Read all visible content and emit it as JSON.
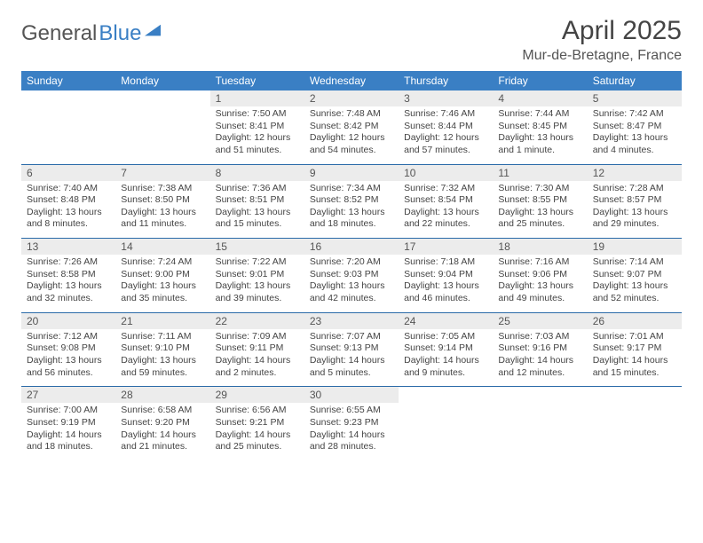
{
  "brand": {
    "part1": "General",
    "part2": "Blue"
  },
  "title": "April 2025",
  "location": "Mur-de-Bretagne, France",
  "day_headers": [
    "Sunday",
    "Monday",
    "Tuesday",
    "Wednesday",
    "Thursday",
    "Friday",
    "Saturday"
  ],
  "colors": {
    "header_bg": "#3a7fc4",
    "header_fg": "#ffffff",
    "daynum_bg": "#ececec",
    "rule": "#2a6aa8"
  },
  "weeks": [
    [
      null,
      null,
      {
        "n": "1",
        "sr": "Sunrise: 7:50 AM",
        "ss": "Sunset: 8:41 PM",
        "dl": "Daylight: 12 hours and 51 minutes."
      },
      {
        "n": "2",
        "sr": "Sunrise: 7:48 AM",
        "ss": "Sunset: 8:42 PM",
        "dl": "Daylight: 12 hours and 54 minutes."
      },
      {
        "n": "3",
        "sr": "Sunrise: 7:46 AM",
        "ss": "Sunset: 8:44 PM",
        "dl": "Daylight: 12 hours and 57 minutes."
      },
      {
        "n": "4",
        "sr": "Sunrise: 7:44 AM",
        "ss": "Sunset: 8:45 PM",
        "dl": "Daylight: 13 hours and 1 minute."
      },
      {
        "n": "5",
        "sr": "Sunrise: 7:42 AM",
        "ss": "Sunset: 8:47 PM",
        "dl": "Daylight: 13 hours and 4 minutes."
      }
    ],
    [
      {
        "n": "6",
        "sr": "Sunrise: 7:40 AM",
        "ss": "Sunset: 8:48 PM",
        "dl": "Daylight: 13 hours and 8 minutes."
      },
      {
        "n": "7",
        "sr": "Sunrise: 7:38 AM",
        "ss": "Sunset: 8:50 PM",
        "dl": "Daylight: 13 hours and 11 minutes."
      },
      {
        "n": "8",
        "sr": "Sunrise: 7:36 AM",
        "ss": "Sunset: 8:51 PM",
        "dl": "Daylight: 13 hours and 15 minutes."
      },
      {
        "n": "9",
        "sr": "Sunrise: 7:34 AM",
        "ss": "Sunset: 8:52 PM",
        "dl": "Daylight: 13 hours and 18 minutes."
      },
      {
        "n": "10",
        "sr": "Sunrise: 7:32 AM",
        "ss": "Sunset: 8:54 PM",
        "dl": "Daylight: 13 hours and 22 minutes."
      },
      {
        "n": "11",
        "sr": "Sunrise: 7:30 AM",
        "ss": "Sunset: 8:55 PM",
        "dl": "Daylight: 13 hours and 25 minutes."
      },
      {
        "n": "12",
        "sr": "Sunrise: 7:28 AM",
        "ss": "Sunset: 8:57 PM",
        "dl": "Daylight: 13 hours and 29 minutes."
      }
    ],
    [
      {
        "n": "13",
        "sr": "Sunrise: 7:26 AM",
        "ss": "Sunset: 8:58 PM",
        "dl": "Daylight: 13 hours and 32 minutes."
      },
      {
        "n": "14",
        "sr": "Sunrise: 7:24 AM",
        "ss": "Sunset: 9:00 PM",
        "dl": "Daylight: 13 hours and 35 minutes."
      },
      {
        "n": "15",
        "sr": "Sunrise: 7:22 AM",
        "ss": "Sunset: 9:01 PM",
        "dl": "Daylight: 13 hours and 39 minutes."
      },
      {
        "n": "16",
        "sr": "Sunrise: 7:20 AM",
        "ss": "Sunset: 9:03 PM",
        "dl": "Daylight: 13 hours and 42 minutes."
      },
      {
        "n": "17",
        "sr": "Sunrise: 7:18 AM",
        "ss": "Sunset: 9:04 PM",
        "dl": "Daylight: 13 hours and 46 minutes."
      },
      {
        "n": "18",
        "sr": "Sunrise: 7:16 AM",
        "ss": "Sunset: 9:06 PM",
        "dl": "Daylight: 13 hours and 49 minutes."
      },
      {
        "n": "19",
        "sr": "Sunrise: 7:14 AM",
        "ss": "Sunset: 9:07 PM",
        "dl": "Daylight: 13 hours and 52 minutes."
      }
    ],
    [
      {
        "n": "20",
        "sr": "Sunrise: 7:12 AM",
        "ss": "Sunset: 9:08 PM",
        "dl": "Daylight: 13 hours and 56 minutes."
      },
      {
        "n": "21",
        "sr": "Sunrise: 7:11 AM",
        "ss": "Sunset: 9:10 PM",
        "dl": "Daylight: 13 hours and 59 minutes."
      },
      {
        "n": "22",
        "sr": "Sunrise: 7:09 AM",
        "ss": "Sunset: 9:11 PM",
        "dl": "Daylight: 14 hours and 2 minutes."
      },
      {
        "n": "23",
        "sr": "Sunrise: 7:07 AM",
        "ss": "Sunset: 9:13 PM",
        "dl": "Daylight: 14 hours and 5 minutes."
      },
      {
        "n": "24",
        "sr": "Sunrise: 7:05 AM",
        "ss": "Sunset: 9:14 PM",
        "dl": "Daylight: 14 hours and 9 minutes."
      },
      {
        "n": "25",
        "sr": "Sunrise: 7:03 AM",
        "ss": "Sunset: 9:16 PM",
        "dl": "Daylight: 14 hours and 12 minutes."
      },
      {
        "n": "26",
        "sr": "Sunrise: 7:01 AM",
        "ss": "Sunset: 9:17 PM",
        "dl": "Daylight: 14 hours and 15 minutes."
      }
    ],
    [
      {
        "n": "27",
        "sr": "Sunrise: 7:00 AM",
        "ss": "Sunset: 9:19 PM",
        "dl": "Daylight: 14 hours and 18 minutes."
      },
      {
        "n": "28",
        "sr": "Sunrise: 6:58 AM",
        "ss": "Sunset: 9:20 PM",
        "dl": "Daylight: 14 hours and 21 minutes."
      },
      {
        "n": "29",
        "sr": "Sunrise: 6:56 AM",
        "ss": "Sunset: 9:21 PM",
        "dl": "Daylight: 14 hours and 25 minutes."
      },
      {
        "n": "30",
        "sr": "Sunrise: 6:55 AM",
        "ss": "Sunset: 9:23 PM",
        "dl": "Daylight: 14 hours and 28 minutes."
      },
      null,
      null,
      null
    ]
  ]
}
